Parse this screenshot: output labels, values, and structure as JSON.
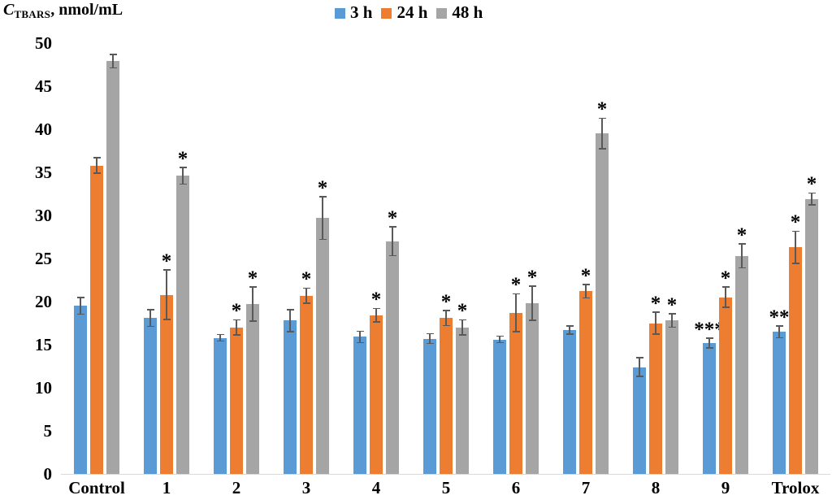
{
  "title": {
    "c": "C",
    "sub": "TBARS",
    "rest": ", nmol/mL"
  },
  "colors": {
    "series_blue": "#5B9BD5",
    "series_orange": "#ED7D31",
    "series_gray": "#A5A5A5",
    "error_bar": "#595959",
    "baseline": "#D9D9D9",
    "text": "#000000"
  },
  "chart_data": {
    "type": "bar",
    "title": "C_TBARS, nmol/mL",
    "xlabel": "",
    "ylabel": "C_TBARS, nmol/mL",
    "ylim": [
      0,
      50
    ],
    "yticks": [
      0,
      5,
      10,
      15,
      20,
      25,
      30,
      35,
      40,
      45,
      50
    ],
    "grid": false,
    "legend_position": "top",
    "error_bars": true,
    "categories": [
      "Control",
      "1",
      "2",
      "3",
      "4",
      "5",
      "6",
      "7",
      "8",
      "9",
      "Trolox"
    ],
    "series": [
      {
        "name": "3 h",
        "color": "#5B9BD5",
        "values": [
          19.5,
          18.1,
          15.8,
          17.8,
          15.9,
          15.7,
          15.6,
          16.7,
          12.4,
          15.2,
          16.5
        ],
        "errors": [
          1.0,
          1.0,
          0.4,
          1.3,
          0.7,
          0.6,
          0.4,
          0.5,
          1.1,
          0.6,
          0.7
        ],
        "annotations": [
          "",
          "",
          "",
          "",
          "",
          "",
          "",
          "",
          "",
          "***",
          "**"
        ]
      },
      {
        "name": "24 h",
        "color": "#ED7D31",
        "values": [
          35.8,
          20.8,
          17.0,
          20.7,
          18.4,
          18.1,
          18.7,
          21.2,
          17.5,
          20.5,
          26.3
        ],
        "errors": [
          0.9,
          2.9,
          0.9,
          0.9,
          0.8,
          0.9,
          2.2,
          0.8,
          1.3,
          1.2,
          1.9
        ],
        "annotations": [
          "",
          "*",
          "*",
          "*",
          "*",
          "*",
          "*",
          "*",
          "*",
          "*",
          "*"
        ]
      },
      {
        "name": "48 h",
        "color": "#A5A5A5",
        "values": [
          47.9,
          34.6,
          19.7,
          29.7,
          27.0,
          17.0,
          19.8,
          39.5,
          17.8,
          25.3,
          31.9
        ],
        "errors": [
          0.8,
          1.0,
          2.0,
          2.5,
          1.7,
          0.9,
          2.0,
          1.8,
          0.8,
          1.4,
          0.7
        ],
        "annotations": [
          "",
          "*",
          "*",
          "*",
          "*",
          "*",
          "*",
          "*",
          "*",
          "*",
          "*"
        ]
      }
    ]
  }
}
